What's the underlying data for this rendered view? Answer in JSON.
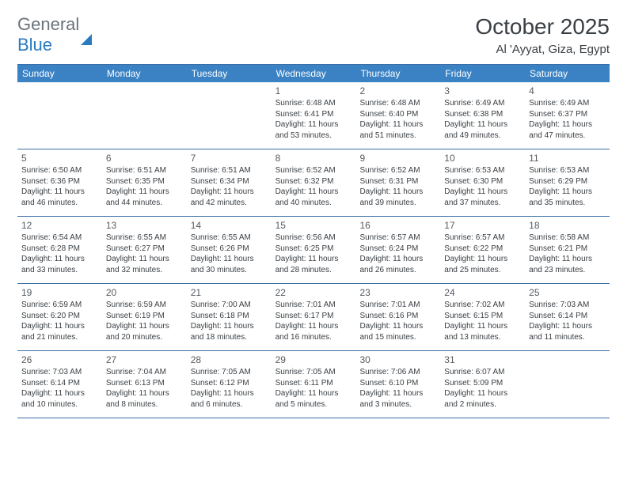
{
  "brand": {
    "text1": "General",
    "text2": "Blue"
  },
  "title": "October 2025",
  "location": "Al 'Ayyat, Giza, Egypt",
  "colors": {
    "headerBg": "#3a82c4",
    "headerText": "#ffffff",
    "ruleColor": "#3a6ea5",
    "bodyText": "#3a3f44",
    "logoGray": "#6a737b",
    "logoBlue": "#2a7ac0",
    "background": "#ffffff"
  },
  "dayNames": [
    "Sunday",
    "Monday",
    "Tuesday",
    "Wednesday",
    "Thursday",
    "Friday",
    "Saturday"
  ],
  "layout": {
    "pageWidth": 792,
    "pageHeight": 612,
    "columns": 7,
    "rows": 5,
    "cellMinHeight": 84,
    "headerFontSize": 12,
    "dayNumFontSize": 12,
    "bodyFontSize": 10,
    "titleFontSize": 28,
    "locationFontSize": 15
  },
  "weeks": [
    [
      {
        "empty": true
      },
      {
        "empty": true
      },
      {
        "empty": true
      },
      {
        "n": "1",
        "sr": "Sunrise: 6:48 AM",
        "ss": "Sunset: 6:41 PM",
        "d1": "Daylight: 11 hours",
        "d2": "and 53 minutes."
      },
      {
        "n": "2",
        "sr": "Sunrise: 6:48 AM",
        "ss": "Sunset: 6:40 PM",
        "d1": "Daylight: 11 hours",
        "d2": "and 51 minutes."
      },
      {
        "n": "3",
        "sr": "Sunrise: 6:49 AM",
        "ss": "Sunset: 6:38 PM",
        "d1": "Daylight: 11 hours",
        "d2": "and 49 minutes."
      },
      {
        "n": "4",
        "sr": "Sunrise: 6:49 AM",
        "ss": "Sunset: 6:37 PM",
        "d1": "Daylight: 11 hours",
        "d2": "and 47 minutes."
      }
    ],
    [
      {
        "n": "5",
        "sr": "Sunrise: 6:50 AM",
        "ss": "Sunset: 6:36 PM",
        "d1": "Daylight: 11 hours",
        "d2": "and 46 minutes."
      },
      {
        "n": "6",
        "sr": "Sunrise: 6:51 AM",
        "ss": "Sunset: 6:35 PM",
        "d1": "Daylight: 11 hours",
        "d2": "and 44 minutes."
      },
      {
        "n": "7",
        "sr": "Sunrise: 6:51 AM",
        "ss": "Sunset: 6:34 PM",
        "d1": "Daylight: 11 hours",
        "d2": "and 42 minutes."
      },
      {
        "n": "8",
        "sr": "Sunrise: 6:52 AM",
        "ss": "Sunset: 6:32 PM",
        "d1": "Daylight: 11 hours",
        "d2": "and 40 minutes."
      },
      {
        "n": "9",
        "sr": "Sunrise: 6:52 AM",
        "ss": "Sunset: 6:31 PM",
        "d1": "Daylight: 11 hours",
        "d2": "and 39 minutes."
      },
      {
        "n": "10",
        "sr": "Sunrise: 6:53 AM",
        "ss": "Sunset: 6:30 PM",
        "d1": "Daylight: 11 hours",
        "d2": "and 37 minutes."
      },
      {
        "n": "11",
        "sr": "Sunrise: 6:53 AM",
        "ss": "Sunset: 6:29 PM",
        "d1": "Daylight: 11 hours",
        "d2": "and 35 minutes."
      }
    ],
    [
      {
        "n": "12",
        "sr": "Sunrise: 6:54 AM",
        "ss": "Sunset: 6:28 PM",
        "d1": "Daylight: 11 hours",
        "d2": "and 33 minutes."
      },
      {
        "n": "13",
        "sr": "Sunrise: 6:55 AM",
        "ss": "Sunset: 6:27 PM",
        "d1": "Daylight: 11 hours",
        "d2": "and 32 minutes."
      },
      {
        "n": "14",
        "sr": "Sunrise: 6:55 AM",
        "ss": "Sunset: 6:26 PM",
        "d1": "Daylight: 11 hours",
        "d2": "and 30 minutes."
      },
      {
        "n": "15",
        "sr": "Sunrise: 6:56 AM",
        "ss": "Sunset: 6:25 PM",
        "d1": "Daylight: 11 hours",
        "d2": "and 28 minutes."
      },
      {
        "n": "16",
        "sr": "Sunrise: 6:57 AM",
        "ss": "Sunset: 6:24 PM",
        "d1": "Daylight: 11 hours",
        "d2": "and 26 minutes."
      },
      {
        "n": "17",
        "sr": "Sunrise: 6:57 AM",
        "ss": "Sunset: 6:22 PM",
        "d1": "Daylight: 11 hours",
        "d2": "and 25 minutes."
      },
      {
        "n": "18",
        "sr": "Sunrise: 6:58 AM",
        "ss": "Sunset: 6:21 PM",
        "d1": "Daylight: 11 hours",
        "d2": "and 23 minutes."
      }
    ],
    [
      {
        "n": "19",
        "sr": "Sunrise: 6:59 AM",
        "ss": "Sunset: 6:20 PM",
        "d1": "Daylight: 11 hours",
        "d2": "and 21 minutes."
      },
      {
        "n": "20",
        "sr": "Sunrise: 6:59 AM",
        "ss": "Sunset: 6:19 PM",
        "d1": "Daylight: 11 hours",
        "d2": "and 20 minutes."
      },
      {
        "n": "21",
        "sr": "Sunrise: 7:00 AM",
        "ss": "Sunset: 6:18 PM",
        "d1": "Daylight: 11 hours",
        "d2": "and 18 minutes."
      },
      {
        "n": "22",
        "sr": "Sunrise: 7:01 AM",
        "ss": "Sunset: 6:17 PM",
        "d1": "Daylight: 11 hours",
        "d2": "and 16 minutes."
      },
      {
        "n": "23",
        "sr": "Sunrise: 7:01 AM",
        "ss": "Sunset: 6:16 PM",
        "d1": "Daylight: 11 hours",
        "d2": "and 15 minutes."
      },
      {
        "n": "24",
        "sr": "Sunrise: 7:02 AM",
        "ss": "Sunset: 6:15 PM",
        "d1": "Daylight: 11 hours",
        "d2": "and 13 minutes."
      },
      {
        "n": "25",
        "sr": "Sunrise: 7:03 AM",
        "ss": "Sunset: 6:14 PM",
        "d1": "Daylight: 11 hours",
        "d2": "and 11 minutes."
      }
    ],
    [
      {
        "n": "26",
        "sr": "Sunrise: 7:03 AM",
        "ss": "Sunset: 6:14 PM",
        "d1": "Daylight: 11 hours",
        "d2": "and 10 minutes."
      },
      {
        "n": "27",
        "sr": "Sunrise: 7:04 AM",
        "ss": "Sunset: 6:13 PM",
        "d1": "Daylight: 11 hours",
        "d2": "and 8 minutes."
      },
      {
        "n": "28",
        "sr": "Sunrise: 7:05 AM",
        "ss": "Sunset: 6:12 PM",
        "d1": "Daylight: 11 hours",
        "d2": "and 6 minutes."
      },
      {
        "n": "29",
        "sr": "Sunrise: 7:05 AM",
        "ss": "Sunset: 6:11 PM",
        "d1": "Daylight: 11 hours",
        "d2": "and 5 minutes."
      },
      {
        "n": "30",
        "sr": "Sunrise: 7:06 AM",
        "ss": "Sunset: 6:10 PM",
        "d1": "Daylight: 11 hours",
        "d2": "and 3 minutes."
      },
      {
        "n": "31",
        "sr": "Sunrise: 6:07 AM",
        "ss": "Sunset: 5:09 PM",
        "d1": "Daylight: 11 hours",
        "d2": "and 2 minutes."
      },
      {
        "empty": true
      }
    ]
  ]
}
